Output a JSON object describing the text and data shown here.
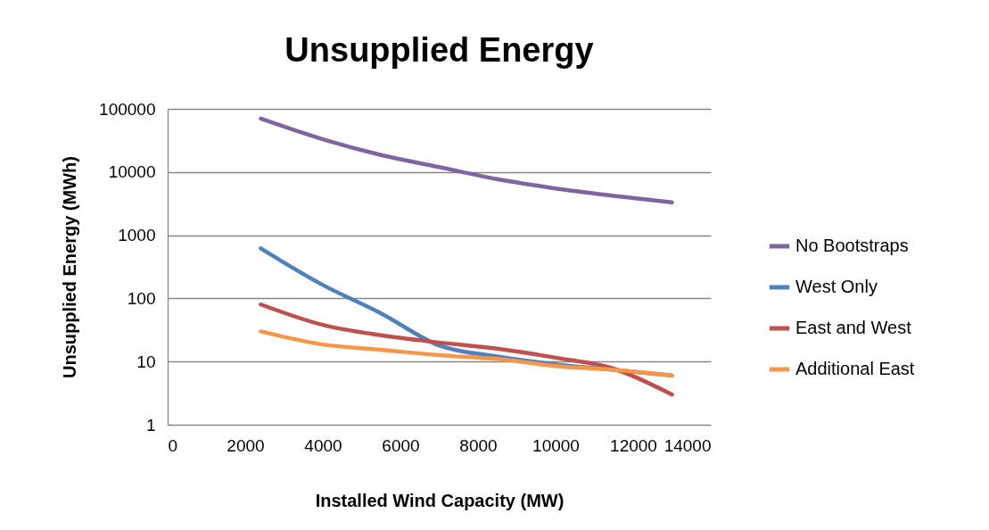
{
  "chart_data": {
    "type": "line",
    "title": "Unsupplied Energy",
    "xlabel": "Installed Wind Capacity (MW)",
    "ylabel": "Unsupplied Energy (MWh)",
    "x": [
      2400,
      4000,
      5500,
      7000,
      8500,
      10000,
      11500,
      13000
    ],
    "series": [
      {
        "name": "No Bootstraps",
        "color": "#8064a2",
        "values": [
          70000,
          33000,
          18600,
          12000,
          7700,
          5500,
          4200,
          3300
        ]
      },
      {
        "name": "West Only",
        "color": "#4f81bd",
        "values": [
          620,
          163,
          58,
          18,
          12,
          9,
          7.4,
          6
        ]
      },
      {
        "name": "East and West",
        "color": "#c0504d",
        "values": [
          80,
          38,
          26,
          20,
          16,
          11.5,
          7.7,
          3
        ]
      },
      {
        "name": "Additional East",
        "color": "#f79646",
        "values": [
          30,
          18.6,
          15.4,
          12.6,
          11,
          8.5,
          7.4,
          6
        ]
      }
    ],
    "log": "y",
    "xlim": [
      0,
      14000
    ],
    "xticks": [
      0,
      2000,
      4000,
      6000,
      8000,
      10000,
      12000,
      14000
    ],
    "ylim": [
      1,
      100000
    ],
    "yticks": [
      1,
      10,
      100,
      1000,
      10000,
      100000
    ],
    "grid": "y",
    "legend": "right",
    "marker": "none",
    "line_style": "solid"
  }
}
